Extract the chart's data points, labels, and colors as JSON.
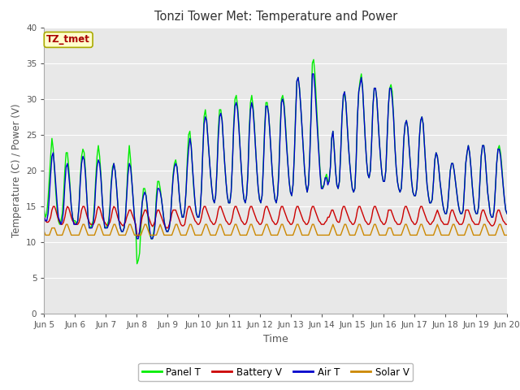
{
  "title": "Tonzi Tower Met: Temperature and Power",
  "xlabel": "Time",
  "ylabel": "Temperature (C) / Power (V)",
  "ylim": [
    0,
    40
  ],
  "yticks": [
    0,
    5,
    10,
    15,
    20,
    25,
    30,
    35,
    40
  ],
  "xtick_labels": [
    "Jun 5",
    "Jun 6",
    "Jun 7",
    "Jun 8",
    "Jun 9",
    "Jun 10",
    "Jun 11",
    "Jun 12",
    "Jun 13",
    "Jun 14",
    "Jun 15",
    "Jun 16",
    "Jun 17",
    "Jun 18",
    "Jun 19",
    "Jun 20"
  ],
  "annotation_text": "TZ_tmet",
  "annotation_color": "#aa0000",
  "annotation_bg": "#ffffcc",
  "annotation_edge": "#aaaa00",
  "legend_labels": [
    "Panel T",
    "Battery V",
    "Air T",
    "Solar V"
  ],
  "line_colors": [
    "#00ee00",
    "#cc0000",
    "#0000cc",
    "#cc8800"
  ],
  "background_color": "#ffffff",
  "plot_bg": "#e8e8e8",
  "grid_color": "#ffffff",
  "n_points": 360,
  "panel_t": [
    14.5,
    13.5,
    14.0,
    16.0,
    19.0,
    22.0,
    24.5,
    23.0,
    20.0,
    17.0,
    14.5,
    13.0,
    12.5,
    13.0,
    14.0,
    16.5,
    20.0,
    22.5,
    22.5,
    20.5,
    18.0,
    15.0,
    13.5,
    13.0,
    13.0,
    12.5,
    13.0,
    15.0,
    19.0,
    22.0,
    23.0,
    22.5,
    20.0,
    16.5,
    13.5,
    12.0,
    12.0,
    12.5,
    13.0,
    15.5,
    19.0,
    22.0,
    23.5,
    22.0,
    19.5,
    16.0,
    13.5,
    12.0,
    12.0,
    12.5,
    13.0,
    15.0,
    18.5,
    20.5,
    21.0,
    20.0,
    18.0,
    15.5,
    13.0,
    12.0,
    11.5,
    11.5,
    12.0,
    13.5,
    17.0,
    21.0,
    23.5,
    21.5,
    18.5,
    16.0,
    13.5,
    12.0,
    7.0,
    7.5,
    8.5,
    12.0,
    15.5,
    17.5,
    17.5,
    16.5,
    14.5,
    12.5,
    11.0,
    10.5,
    10.5,
    11.5,
    13.0,
    16.5,
    18.5,
    18.5,
    17.5,
    16.0,
    14.5,
    13.0,
    12.0,
    11.5,
    11.5,
    12.0,
    13.5,
    16.5,
    19.5,
    21.0,
    21.5,
    20.5,
    18.5,
    16.0,
    14.5,
    13.5,
    13.5,
    14.5,
    17.0,
    21.5,
    25.0,
    25.5,
    23.5,
    20.5,
    17.5,
    15.5,
    14.0,
    13.5,
    13.5,
    14.5,
    17.5,
    22.5,
    27.5,
    28.5,
    27.0,
    24.5,
    22.0,
    19.5,
    17.5,
    16.0,
    15.5,
    16.5,
    20.0,
    25.5,
    28.5,
    28.5,
    27.0,
    24.0,
    21.0,
    18.5,
    16.5,
    15.5,
    15.5,
    17.0,
    21.0,
    26.5,
    30.0,
    30.5,
    29.0,
    26.5,
    23.0,
    20.0,
    17.5,
    16.0,
    15.5,
    16.5,
    19.5,
    25.5,
    29.5,
    30.5,
    29.0,
    26.5,
    23.0,
    20.0,
    17.5,
    16.0,
    15.5,
    16.5,
    21.0,
    26.0,
    29.5,
    29.5,
    28.0,
    25.5,
    22.5,
    19.5,
    17.5,
    16.0,
    15.5,
    16.5,
    20.0,
    25.5,
    30.0,
    30.5,
    29.5,
    27.0,
    24.0,
    21.0,
    18.5,
    17.0,
    16.5,
    18.0,
    22.0,
    28.0,
    32.5,
    33.0,
    31.5,
    29.0,
    26.0,
    23.0,
    20.0,
    18.0,
    17.0,
    18.0,
    22.0,
    28.0,
    35.0,
    35.5,
    33.5,
    30.0,
    26.5,
    23.0,
    20.0,
    18.0,
    17.5,
    18.0,
    19.0,
    19.5,
    18.5,
    18.5,
    20.5,
    24.5,
    25.5,
    23.0,
    20.0,
    18.0,
    17.5,
    18.5,
    22.5,
    27.5,
    30.0,
    31.0,
    29.5,
    26.5,
    23.5,
    21.0,
    19.0,
    17.5,
    17.0,
    17.5,
    21.5,
    27.5,
    31.0,
    32.5,
    33.5,
    31.5,
    28.0,
    24.5,
    21.5,
    19.5,
    19.0,
    20.0,
    24.0,
    29.0,
    31.5,
    31.5,
    30.0,
    27.0,
    24.0,
    21.5,
    19.5,
    18.5,
    18.5,
    20.0,
    24.5,
    29.0,
    31.5,
    32.0,
    31.0,
    27.5,
    23.5,
    20.5,
    18.5,
    17.5,
    17.0,
    17.5,
    20.5,
    24.5,
    26.5,
    27.0,
    26.0,
    23.5,
    21.0,
    18.5,
    17.0,
    16.5,
    16.5,
    17.5,
    20.5,
    24.5,
    27.0,
    27.5,
    26.5,
    23.5,
    20.5,
    18.0,
    16.5,
    15.5,
    15.5,
    16.0,
    18.5,
    21.5,
    22.5,
    22.0,
    20.5,
    18.5,
    17.0,
    15.5,
    14.5,
    14.0,
    14.0,
    15.0,
    17.5,
    20.0,
    21.0,
    21.0,
    20.0,
    18.5,
    17.0,
    15.5,
    14.5,
    14.0,
    14.0,
    14.5,
    17.5,
    21.0,
    22.5,
    23.5,
    22.5,
    20.5,
    18.0,
    16.0,
    14.5,
    14.0,
    14.0,
    15.0,
    18.5,
    22.0,
    23.5,
    23.5,
    22.0,
    19.5,
    17.0,
    15.5,
    14.0,
    13.5,
    13.5,
    14.5,
    17.5,
    21.0,
    23.0,
    23.5,
    22.5,
    20.5,
    18.0,
    16.0,
    14.5,
    14.0
  ],
  "battery_v": [
    13.5,
    13.0,
    12.8,
    12.8,
    13.0,
    13.5,
    14.5,
    15.0,
    15.0,
    14.5,
    13.8,
    13.2,
    12.8,
    12.5,
    12.5,
    12.8,
    13.5,
    14.5,
    15.0,
    14.8,
    14.2,
    13.5,
    13.0,
    12.8,
    12.5,
    12.5,
    12.5,
    12.8,
    13.5,
    14.5,
    15.0,
    15.0,
    14.5,
    13.8,
    13.2,
    12.8,
    12.5,
    12.5,
    12.5,
    12.8,
    13.5,
    14.5,
    15.0,
    14.8,
    14.2,
    13.5,
    13.0,
    12.8,
    12.5,
    12.3,
    12.5,
    12.8,
    13.5,
    14.5,
    15.0,
    14.8,
    14.2,
    13.5,
    13.0,
    12.8,
    12.5,
    12.3,
    12.5,
    12.8,
    13.5,
    14.0,
    14.5,
    14.5,
    14.0,
    13.5,
    13.0,
    12.5,
    11.0,
    10.8,
    11.5,
    12.5,
    13.5,
    14.0,
    14.5,
    14.5,
    14.0,
    13.5,
    13.0,
    12.5,
    12.2,
    12.5,
    13.0,
    14.0,
    14.5,
    14.5,
    14.0,
    13.5,
    13.0,
    12.5,
    12.2,
    12.0,
    12.0,
    12.5,
    13.0,
    14.0,
    14.5,
    14.5,
    14.5,
    14.0,
    13.5,
    13.0,
    12.5,
    12.3,
    12.3,
    12.5,
    13.5,
    14.5,
    15.0,
    15.0,
    14.5,
    14.0,
    13.5,
    13.0,
    12.8,
    12.5,
    12.5,
    12.8,
    13.5,
    14.5,
    15.0,
    15.0,
    14.5,
    14.0,
    13.5,
    13.0,
    12.8,
    12.5,
    12.5,
    12.8,
    13.5,
    14.5,
    15.0,
    15.0,
    14.5,
    14.0,
    13.5,
    13.0,
    12.8,
    12.5,
    12.5,
    12.8,
    13.5,
    14.5,
    15.0,
    15.0,
    14.5,
    14.0,
    13.5,
    13.0,
    12.8,
    12.5,
    12.5,
    12.8,
    13.5,
    14.5,
    15.0,
    15.0,
    14.5,
    14.0,
    13.5,
    13.0,
    12.8,
    12.5,
    12.5,
    12.8,
    13.5,
    14.5,
    15.0,
    15.0,
    14.5,
    14.0,
    13.5,
    13.0,
    12.8,
    12.5,
    12.5,
    12.8,
    13.5,
    14.5,
    15.0,
    15.0,
    14.5,
    14.0,
    13.5,
    13.0,
    12.8,
    12.5,
    12.5,
    12.8,
    13.5,
    14.5,
    15.0,
    15.0,
    14.5,
    14.0,
    13.5,
    13.0,
    12.8,
    12.5,
    12.5,
    12.8,
    13.5,
    14.5,
    15.0,
    15.0,
    14.5,
    14.0,
    13.5,
    13.0,
    12.8,
    12.5,
    12.5,
    12.5,
    12.8,
    13.0,
    13.5,
    13.5,
    14.0,
    14.5,
    14.5,
    14.0,
    13.5,
    13.0,
    12.8,
    12.8,
    13.5,
    14.5,
    15.0,
    15.0,
    14.5,
    14.0,
    13.5,
    13.0,
    12.8,
    12.5,
    12.5,
    12.8,
    13.5,
    14.5,
    15.0,
    15.0,
    14.5,
    14.0,
    13.5,
    13.0,
    12.8,
    12.5,
    12.5,
    12.8,
    13.5,
    14.5,
    15.0,
    15.0,
    14.5,
    14.0,
    13.5,
    13.0,
    12.8,
    12.5,
    12.5,
    12.8,
    13.5,
    14.5,
    14.5,
    14.5,
    14.0,
    13.5,
    13.0,
    12.8,
    12.5,
    12.5,
    12.5,
    12.8,
    13.5,
    14.5,
    15.0,
    15.0,
    14.5,
    14.0,
    13.5,
    13.0,
    12.8,
    12.5,
    12.5,
    12.8,
    13.5,
    14.5,
    15.0,
    15.0,
    14.5,
    14.0,
    13.5,
    13.0,
    12.8,
    12.5,
    12.5,
    12.8,
    13.0,
    13.5,
    14.0,
    14.5,
    14.0,
    13.5,
    13.0,
    12.8,
    12.5,
    12.5,
    12.5,
    12.5,
    13.0,
    14.0,
    14.5,
    14.5,
    14.0,
    13.5,
    13.0,
    12.8,
    12.5,
    12.5,
    12.5,
    12.8,
    13.5,
    14.5,
    14.5,
    14.5,
    14.0,
    13.5,
    13.0,
    12.8,
    12.5,
    12.5,
    12.5,
    12.5,
    13.0,
    14.0,
    14.5,
    14.5,
    14.0,
    13.5,
    13.0,
    12.8,
    12.5,
    12.3,
    12.3,
    12.5,
    13.0,
    14.0,
    14.5,
    14.5,
    14.0,
    13.5,
    13.0,
    12.8,
    12.5,
    12.5
  ],
  "air_t": [
    13.5,
    13.0,
    13.0,
    14.0,
    16.5,
    19.5,
    22.0,
    22.5,
    20.5,
    18.0,
    15.5,
    13.5,
    13.0,
    12.5,
    13.0,
    14.5,
    18.0,
    20.5,
    21.0,
    19.5,
    17.5,
    15.0,
    13.5,
    12.5,
    12.5,
    12.5,
    13.0,
    15.0,
    18.5,
    21.0,
    22.0,
    21.5,
    19.5,
    16.5,
    13.5,
    12.0,
    12.0,
    12.0,
    12.5,
    14.5,
    18.0,
    20.5,
    21.5,
    21.0,
    19.0,
    16.0,
    13.5,
    12.0,
    12.0,
    12.0,
    12.5,
    14.5,
    18.0,
    20.0,
    21.0,
    20.0,
    18.0,
    15.5,
    13.0,
    12.0,
    11.5,
    11.5,
    12.0,
    13.5,
    16.5,
    19.5,
    21.0,
    20.5,
    18.5,
    16.0,
    13.5,
    12.0,
    10.5,
    10.5,
    11.5,
    13.5,
    15.5,
    16.5,
    17.0,
    16.5,
    15.0,
    13.0,
    11.5,
    10.5,
    10.5,
    11.0,
    12.5,
    15.5,
    17.5,
    17.5,
    17.0,
    16.0,
    14.5,
    13.0,
    12.0,
    11.5,
    11.5,
    12.0,
    13.5,
    16.5,
    19.0,
    20.5,
    21.0,
    20.5,
    18.5,
    16.0,
    14.5,
    13.5,
    13.5,
    14.5,
    17.0,
    20.5,
    23.0,
    24.5,
    23.5,
    20.5,
    18.0,
    15.5,
    14.0,
    13.5,
    13.5,
    14.5,
    17.5,
    22.5,
    26.5,
    27.5,
    27.0,
    24.5,
    22.0,
    19.5,
    17.5,
    16.0,
    15.5,
    16.5,
    20.0,
    24.5,
    27.5,
    28.0,
    27.0,
    24.0,
    21.0,
    18.5,
    16.5,
    15.5,
    15.5,
    17.0,
    21.0,
    26.0,
    29.0,
    29.5,
    28.5,
    26.0,
    23.0,
    20.0,
    17.5,
    16.0,
    15.5,
    16.5,
    19.5,
    25.0,
    28.5,
    29.5,
    28.5,
    26.0,
    23.0,
    20.0,
    17.5,
    16.0,
    15.5,
    16.5,
    20.5,
    25.5,
    29.0,
    29.0,
    28.0,
    25.5,
    22.5,
    19.5,
    17.5,
    16.0,
    15.5,
    16.5,
    19.5,
    25.0,
    29.5,
    30.0,
    29.0,
    26.5,
    23.5,
    21.0,
    18.5,
    17.0,
    16.5,
    18.0,
    22.0,
    27.5,
    32.5,
    33.0,
    31.5,
    29.0,
    26.0,
    23.0,
    20.0,
    18.0,
    17.0,
    18.0,
    22.0,
    27.5,
    33.5,
    33.5,
    31.5,
    28.5,
    25.5,
    22.5,
    19.5,
    17.5,
    17.5,
    18.0,
    19.0,
    19.0,
    18.0,
    18.5,
    20.5,
    24.5,
    25.5,
    23.0,
    20.0,
    18.0,
    17.5,
    18.5,
    22.5,
    27.5,
    30.5,
    31.0,
    29.5,
    26.5,
    23.5,
    21.0,
    19.0,
    17.5,
    17.0,
    17.5,
    21.5,
    27.5,
    31.0,
    32.0,
    33.0,
    31.5,
    28.0,
    24.5,
    21.5,
    19.5,
    19.0,
    20.0,
    24.0,
    29.0,
    31.5,
    31.5,
    30.0,
    27.0,
    24.0,
    21.5,
    19.5,
    18.5,
    18.5,
    20.0,
    24.5,
    29.0,
    31.5,
    31.5,
    30.0,
    27.5,
    23.5,
    20.5,
    18.5,
    17.5,
    17.0,
    17.5,
    20.5,
    24.5,
    26.5,
    27.0,
    26.0,
    23.5,
    21.0,
    18.5,
    17.0,
    16.5,
    16.5,
    17.5,
    20.5,
    24.5,
    27.0,
    27.5,
    26.5,
    23.5,
    20.5,
    18.0,
    16.5,
    15.5,
    15.5,
    16.0,
    18.5,
    21.5,
    22.5,
    22.0,
    20.5,
    18.5,
    17.0,
    15.5,
    14.5,
    14.0,
    14.0,
    15.0,
    17.5,
    20.0,
    21.0,
    21.0,
    20.0,
    18.5,
    17.0,
    15.5,
    14.5,
    14.0,
    14.0,
    14.5,
    17.5,
    21.0,
    22.5,
    23.5,
    22.5,
    20.5,
    18.0,
    16.0,
    14.5,
    14.0,
    14.0,
    15.0,
    18.5,
    22.0,
    23.5,
    23.5,
    22.0,
    19.5,
    17.0,
    15.5,
    14.0,
    13.5,
    13.5,
    14.5,
    17.5,
    21.0,
    23.0,
    23.0,
    22.0,
    20.0,
    18.0,
    16.0,
    14.5,
    14.0
  ],
  "solar_v": [
    11.5,
    11.0,
    11.0,
    11.0,
    11.0,
    11.5,
    12.0,
    12.0,
    12.0,
    11.5,
    11.0,
    11.0,
    11.0,
    11.0,
    11.0,
    11.5,
    12.0,
    12.5,
    12.5,
    12.0,
    11.5,
    11.0,
    11.0,
    11.0,
    11.0,
    11.0,
    11.0,
    11.0,
    11.5,
    12.0,
    12.5,
    12.5,
    12.0,
    11.5,
    11.0,
    11.0,
    11.0,
    11.0,
    11.0,
    11.0,
    11.5,
    12.0,
    12.5,
    12.5,
    12.0,
    11.5,
    11.0,
    11.0,
    11.0,
    11.0,
    11.0,
    11.0,
    11.5,
    12.0,
    12.5,
    12.5,
    12.0,
    11.5,
    11.0,
    11.0,
    11.0,
    11.0,
    11.0,
    11.0,
    11.5,
    12.0,
    12.5,
    12.5,
    12.0,
    11.5,
    11.0,
    11.0,
    11.0,
    11.0,
    11.0,
    11.0,
    11.5,
    12.0,
    12.5,
    12.5,
    12.0,
    11.5,
    11.0,
    11.0,
    11.0,
    11.0,
    11.0,
    11.0,
    11.5,
    12.0,
    12.5,
    12.0,
    11.5,
    11.0,
    11.0,
    11.0,
    11.0,
    11.0,
    11.0,
    11.0,
    11.5,
    12.0,
    12.5,
    12.5,
    12.0,
    11.5,
    11.0,
    11.0,
    11.0,
    11.0,
    11.0,
    11.5,
    12.0,
    12.5,
    12.5,
    12.0,
    11.5,
    11.0,
    11.0,
    11.0,
    11.0,
    11.0,
    11.0,
    11.5,
    12.0,
    12.5,
    12.5,
    12.0,
    11.5,
    11.0,
    11.0,
    11.0,
    11.0,
    11.0,
    11.5,
    12.0,
    12.5,
    12.5,
    12.0,
    11.5,
    11.0,
    11.0,
    11.0,
    11.0,
    11.0,
    11.0,
    11.5,
    12.0,
    12.5,
    12.5,
    12.0,
    11.5,
    11.0,
    11.0,
    11.0,
    11.0,
    11.0,
    11.0,
    11.5,
    12.0,
    12.5,
    12.5,
    12.0,
    11.5,
    11.0,
    11.0,
    11.0,
    11.0,
    11.0,
    11.0,
    11.5,
    12.0,
    12.5,
    12.5,
    12.0,
    11.5,
    11.0,
    11.0,
    11.0,
    11.0,
    11.0,
    11.0,
    11.5,
    12.0,
    12.5,
    12.5,
    12.0,
    11.5,
    11.0,
    11.0,
    11.0,
    11.0,
    11.0,
    11.0,
    11.5,
    12.0,
    12.5,
    12.5,
    12.0,
    11.5,
    11.0,
    11.0,
    11.0,
    11.0,
    11.0,
    11.0,
    11.5,
    12.0,
    12.5,
    12.5,
    12.0,
    11.5,
    11.0,
    11.0,
    11.0,
    11.0,
    11.0,
    11.0,
    11.0,
    11.0,
    11.0,
    11.0,
    11.5,
    12.0,
    12.5,
    12.0,
    11.5,
    11.0,
    11.0,
    11.0,
    11.0,
    11.5,
    12.0,
    12.5,
    12.5,
    12.0,
    11.5,
    11.0,
    11.0,
    11.0,
    11.0,
    11.0,
    11.5,
    12.0,
    12.5,
    12.5,
    12.0,
    11.5,
    11.0,
    11.0,
    11.0,
    11.0,
    11.0,
    11.0,
    11.5,
    12.0,
    12.5,
    12.5,
    12.0,
    11.5,
    11.0,
    11.0,
    11.0,
    11.0,
    11.0,
    11.0,
    11.5,
    12.0,
    12.0,
    12.0,
    11.5,
    11.0,
    11.0,
    11.0,
    11.0,
    11.0,
    11.0,
    11.0,
    11.5,
    12.0,
    12.5,
    12.5,
    12.0,
    11.5,
    11.0,
    11.0,
    11.0,
    11.0,
    11.0,
    11.0,
    11.5,
    12.0,
    12.5,
    12.5,
    12.0,
    11.5,
    11.0,
    11.0,
    11.0,
    11.0,
    11.0,
    11.0,
    11.0,
    11.5,
    12.0,
    12.5,
    12.0,
    11.5,
    11.0,
    11.0,
    11.0,
    11.0,
    11.0,
    11.0,
    11.0,
    11.5,
    12.0,
    12.5,
    12.5,
    12.0,
    11.5,
    11.0,
    11.0,
    11.0,
    11.0,
    11.0,
    11.0,
    11.5,
    12.0,
    12.5,
    12.5,
    12.0,
    11.5,
    11.0,
    11.0,
    11.0,
    11.0,
    11.0,
    11.0,
    11.5,
    12.0,
    12.5,
    12.5,
    12.0,
    11.5,
    11.0,
    11.0,
    11.0,
    11.0,
    11.0,
    11.0,
    11.5,
    12.0,
    12.5,
    12.5,
    12.0,
    11.5,
    11.0,
    11.0,
    11.0
  ]
}
